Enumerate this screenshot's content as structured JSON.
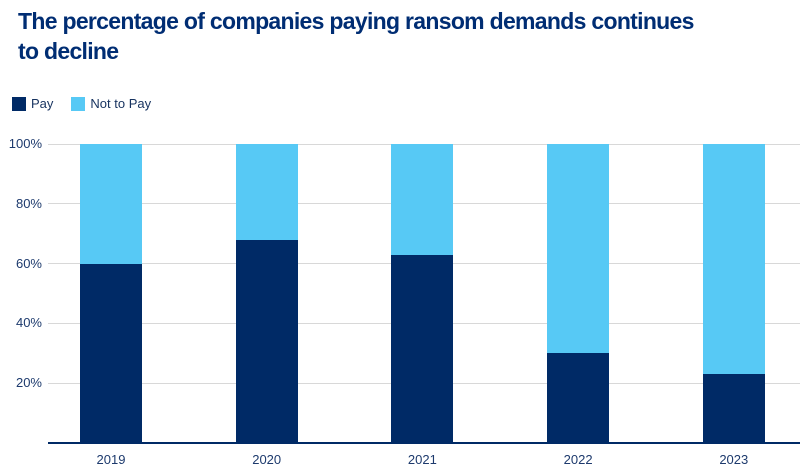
{
  "title": {
    "text": "The percentage of companies paying ransom demands continues to decline",
    "line1": "The percentage of companies paying ransom demands continues",
    "line2": "to decline"
  },
  "legend": [
    {
      "label": "Pay",
      "color": "#002a66"
    },
    {
      "label": "Not to Pay",
      "color": "#57c9f5"
    }
  ],
  "chart_data": {
    "type": "bar",
    "stacked": true,
    "title": "The percentage of companies paying ransom demands continues to decline",
    "categories": [
      "2019",
      "2020",
      "2021",
      "2022",
      "2023"
    ],
    "series": [
      {
        "name": "Pay",
        "color": "#002a66",
        "values": [
          60,
          68,
          63,
          30,
          23
        ]
      },
      {
        "name": "Not to Pay",
        "color": "#57c9f5",
        "values": [
          40,
          32,
          37,
          70,
          77
        ]
      }
    ],
    "xlabel": "",
    "ylabel": "",
    "ylim": [
      0,
      100
    ],
    "y_ticks": [
      20,
      40,
      60,
      80,
      100
    ],
    "y_tick_suffix": "%",
    "grid": true,
    "legend_position": "top-left"
  },
  "colors": {
    "title": "#002d73",
    "bar_pay": "#002a66",
    "bar_not_to_pay": "#57c9f5",
    "gridline": "#d8d8d8",
    "tick_text": "#1d3a6d",
    "axis_baseline": "#002a66",
    "background": "#ffffff"
  }
}
